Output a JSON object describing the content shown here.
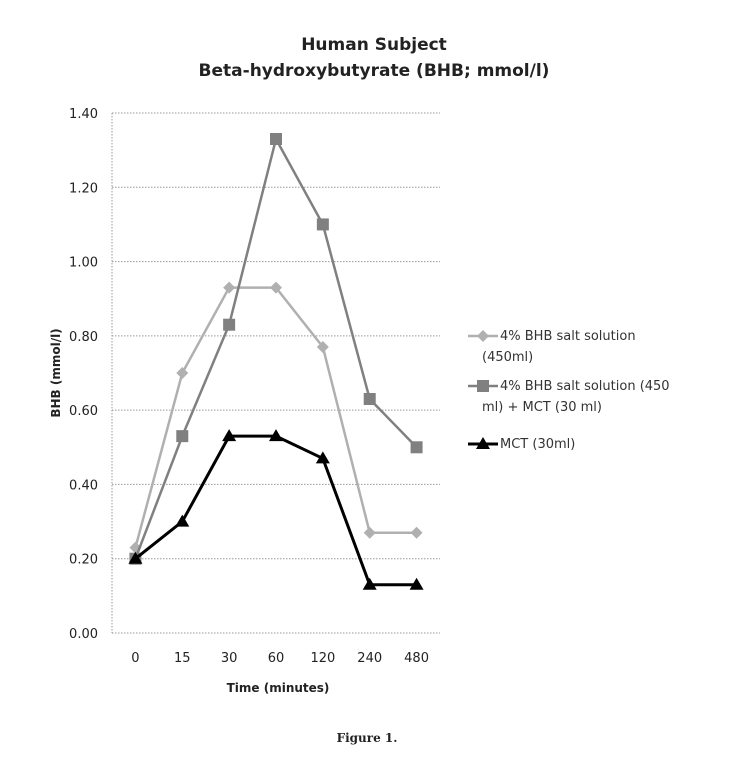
{
  "chart_data": {
    "type": "line",
    "title": "Human Subject",
    "subtitle": "Beta-hydroxybutyrate (BHB; mmol/l)",
    "xlabel": "Time (minutes)",
    "ylabel": "BHB (mmol/l)",
    "categories": [
      "0",
      "15",
      "30",
      "60",
      "120",
      "240",
      "480"
    ],
    "ylim": [
      0,
      1.4
    ],
    "yticks": [
      "0.00",
      "0.20",
      "0.40",
      "0.60",
      "0.80",
      "1.00",
      "1.20",
      "1.40"
    ],
    "grid": true,
    "legend_position": "right",
    "series": [
      {
        "name": "4% BHB salt solution (450ml)",
        "legend_lines": [
          "4% BHB salt solution",
          "(450ml)"
        ],
        "marker": "diamond",
        "color": "#b0b0b0",
        "values": [
          0.23,
          0.7,
          0.93,
          0.93,
          0.77,
          0.27,
          0.27
        ]
      },
      {
        "name": "4% BHB salt solution (450 ml) + MCT (30 ml)",
        "legend_lines": [
          "4% BHB salt solution (450",
          "ml) + MCT (30 ml)"
        ],
        "marker": "square",
        "color": "#808080",
        "values": [
          0.2,
          0.53,
          0.83,
          1.33,
          1.1,
          0.63,
          0.5
        ]
      },
      {
        "name": "MCT (30ml)",
        "legend_lines": [
          "MCT (30ml)"
        ],
        "marker": "triangle",
        "color": "#000000",
        "values": [
          0.2,
          0.3,
          0.53,
          0.53,
          0.47,
          0.13,
          0.13
        ]
      }
    ]
  },
  "caption": "Figure 1."
}
